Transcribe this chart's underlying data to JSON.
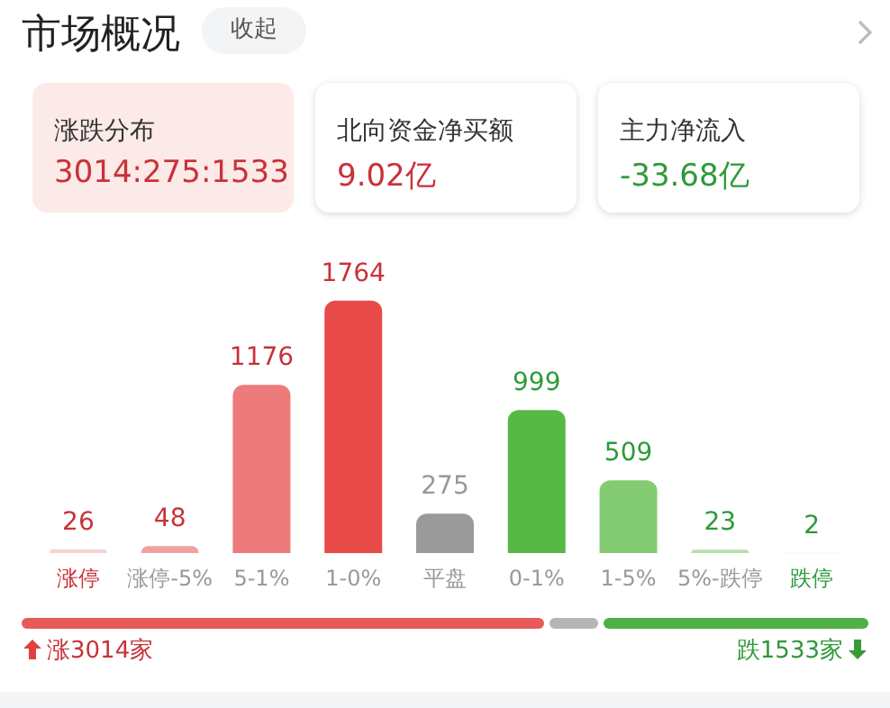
{
  "chart_data": {
    "type": "bar",
    "title": "市场概况",
    "annotations": [
      "收起",
      "涨跌分布",
      "3014:275:1533",
      "北向资金净买额",
      "9.02亿",
      "主力净流入",
      "-33.68亿",
      "涨3014家",
      "跌1533家"
    ],
    "categories": [
      "涨停",
      "涨停-5%",
      "5-1%",
      "1-0%",
      "平盘",
      "0-1%",
      "1-5%",
      "5%-跌停",
      "跌停"
    ],
    "values": [
      26,
      48,
      1176,
      1764,
      275,
      999,
      509,
      23,
      2
    ],
    "colors": [
      "#f7d3d3",
      "#f0a2a2",
      "#ee7b7b",
      "#e84a4a",
      "#9a9a9a",
      "#56b845",
      "#84cc74",
      "#b6e0ac",
      "#d9efd3"
    ],
    "data_labels": true
  }
}
